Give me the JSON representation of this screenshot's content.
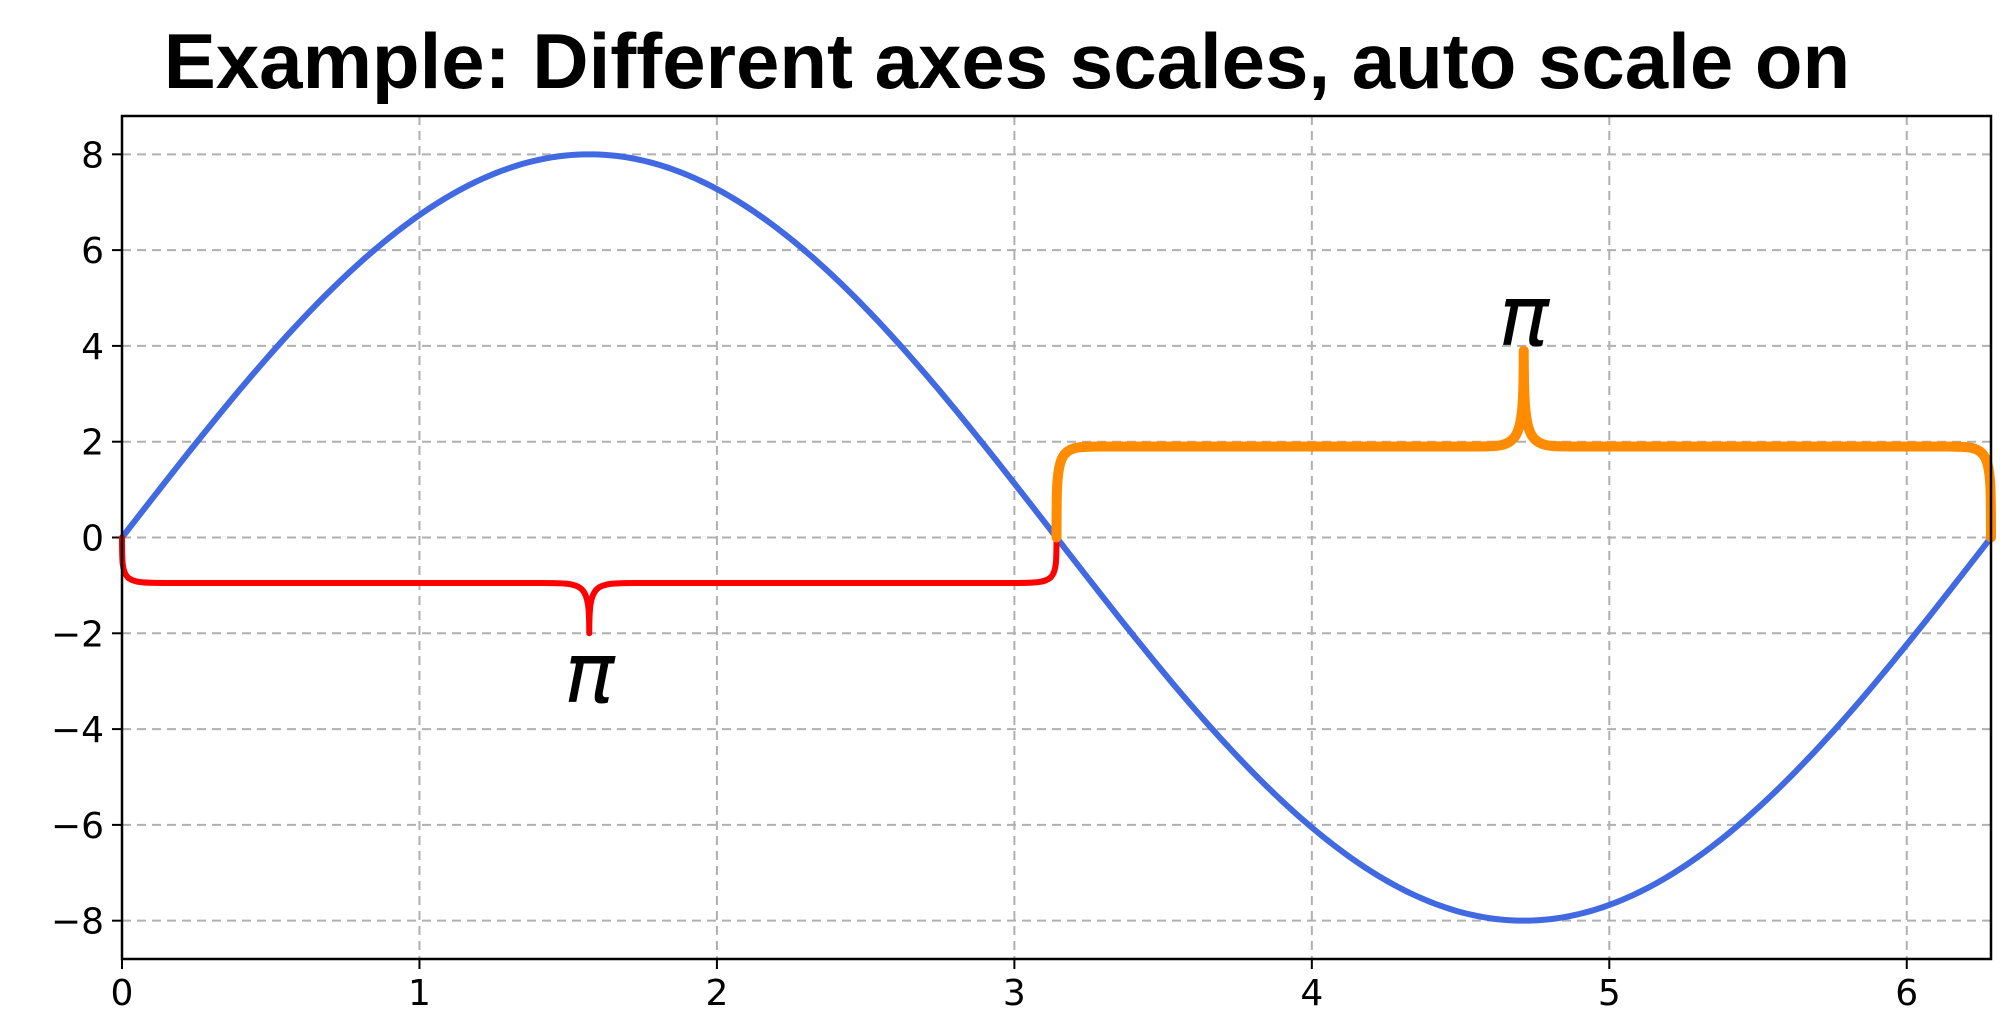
{
  "chart_data": {
    "type": "line",
    "title": "Example: Different axes scales, auto scale on",
    "xlabel": "",
    "ylabel": "",
    "xlim": [
      0,
      6.2832
    ],
    "ylim": [
      -8.8,
      8.8
    ],
    "x_ticks": [
      0,
      1,
      2,
      3,
      4,
      5,
      6
    ],
    "y_ticks": [
      8,
      6,
      4,
      2,
      0,
      -2,
      -4,
      -6,
      -8
    ],
    "x_tick_labels": [
      "0",
      "1",
      "2",
      "3",
      "4",
      "5",
      "6"
    ],
    "y_tick_labels": [
      "8",
      "6",
      "4",
      "2",
      "0",
      "−2",
      "−4",
      "−6",
      "−8"
    ],
    "grid": true,
    "series": [
      {
        "kind": "function",
        "function": "8*sin(x)",
        "x_range": [
          0,
          6.2832
        ],
        "color": "#4169e1"
      }
    ],
    "annotations": [
      {
        "kind": "curly_brace",
        "text": "π",
        "x_start": 0,
        "x_end": 3.1416,
        "y_base": 0,
        "y_arm": -0.95,
        "y_tip": -2,
        "direction": "down",
        "color": "#ff0000",
        "label_x": 1.5708,
        "label_y": -2.85
      },
      {
        "kind": "curly_brace",
        "text": "π",
        "x_start": 3.1416,
        "x_end": 6.2832,
        "y_base": 0,
        "y_arm": 1.9,
        "y_tip": 3.9,
        "direction": "up",
        "color": "#ff8c00",
        "label_x": 4.7124,
        "label_y": 4.6
      }
    ]
  }
}
